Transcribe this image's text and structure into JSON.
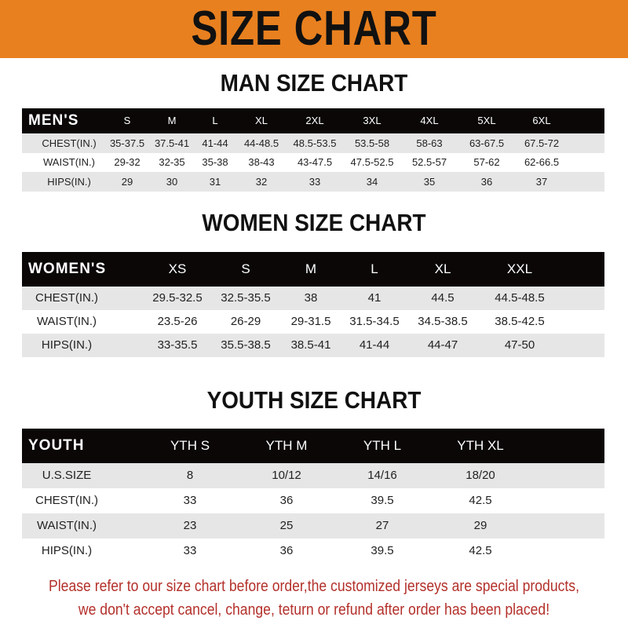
{
  "banner": {
    "title": "SIZE CHART",
    "color": "#e8801f"
  },
  "men": {
    "title": "MAN SIZE CHART",
    "header": [
      "MEN'S",
      "S",
      "M",
      "L",
      "XL",
      "2XL",
      "3XL",
      "4XL",
      "5XL",
      "6XL"
    ],
    "rows": [
      [
        "CHEST(IN.)",
        "35-37.5",
        "37.5-41",
        "41-44",
        "44-48.5",
        "48.5-53.5",
        "53.5-58",
        "58-63",
        "63-67.5",
        "67.5-72"
      ],
      [
        "WAIST(IN.)",
        "29-32",
        "32-35",
        "35-38",
        "38-43",
        "43-47.5",
        "47.5-52.5",
        "52.5-57",
        "57-62",
        "62-66.5"
      ],
      [
        "HIPS(IN.)",
        "29",
        "30",
        "31",
        "32",
        "33",
        "34",
        "35",
        "36",
        "37"
      ]
    ]
  },
  "women": {
    "title": "WOMEN SIZE CHART",
    "header": [
      "WOMEN'S",
      "XS",
      "S",
      "M",
      "L",
      "XL",
      "XXL"
    ],
    "rows": [
      [
        "CHEST(IN.)",
        "29.5-32.5",
        "32.5-35.5",
        "38",
        "41",
        "44.5",
        "44.5-48.5"
      ],
      [
        "WAIST(IN.)",
        "23.5-26",
        "26-29",
        "29-31.5",
        "31.5-34.5",
        "34.5-38.5",
        "38.5-42.5"
      ],
      [
        "HIPS(IN.)",
        "33-35.5",
        "35.5-38.5",
        "38.5-41",
        "41-44",
        "44-47",
        "47-50"
      ]
    ]
  },
  "youth": {
    "title": "YOUTH SIZE CHART",
    "header": [
      "YOUTH",
      "YTH S",
      "YTH M",
      "YTH L",
      "YTH XL"
    ],
    "rows": [
      [
        "U.S.SIZE",
        "8",
        "10/12",
        "14/16",
        "18/20"
      ],
      [
        "CHEST(IN.)",
        "33",
        "36",
        "39.5",
        "42.5"
      ],
      [
        "WAIST(IN.)",
        "23",
        "25",
        "27",
        "29"
      ],
      [
        "HIPS(IN.)",
        "33",
        "36",
        "39.5",
        "42.5"
      ]
    ]
  },
  "note": {
    "line1": "Please refer to our size chart before order,the customized jerseys are special products,",
    "line2": "we don't accept cancel, change, teturn or refund after order has been placed!",
    "color": "#b3302a"
  }
}
